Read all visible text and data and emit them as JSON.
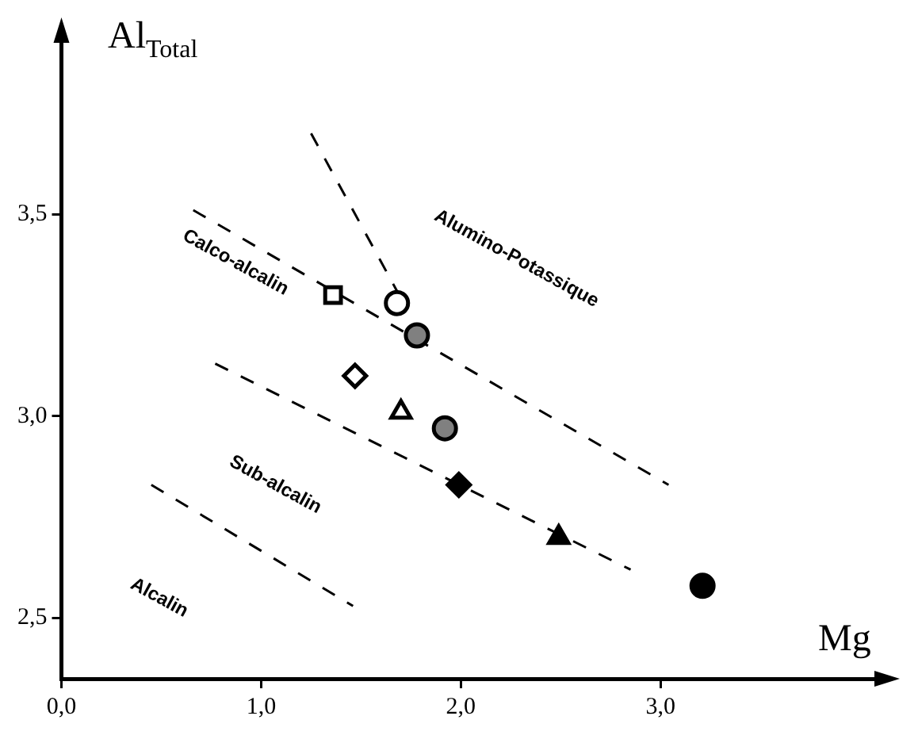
{
  "chart_data": {
    "type": "scatter",
    "xlabel": "Mg",
    "ylabel": "Al$_{Total}$",
    "xlim": [
      0,
      4.15
    ],
    "ylim": [
      2.35,
      3.94
    ],
    "xticks": [
      {
        "value": 0,
        "label": "0,0"
      },
      {
        "value": 1,
        "label": "1,0"
      },
      {
        "value": 2,
        "label": "2,0"
      },
      {
        "value": 3,
        "label": "3,0"
      }
    ],
    "yticks": [
      {
        "value": 2.5,
        "label": "2,5"
      },
      {
        "value": 3,
        "label": "3,0"
      },
      {
        "value": 3.5,
        "label": "3,5"
      }
    ],
    "grid": false,
    "legend": false,
    "series": [
      {
        "type": "scatter",
        "marker": "square",
        "color": "#000000",
        "colors": [
          "#ffffff"
        ],
        "x": [
          1.36
        ],
        "values": [
          3.3
        ]
      },
      {
        "type": "scatter",
        "marker": "circle",
        "color": "#000000",
        "colors": [
          "#ffffff"
        ],
        "x": [
          1.68
        ],
        "values": [
          3.28
        ]
      },
      {
        "type": "scatter",
        "marker": "circle",
        "color": "#000000",
        "colors": [
          "#808080"
        ],
        "x": [
          1.78
        ],
        "values": [
          3.2
        ]
      },
      {
        "type": "scatter",
        "marker": "diamond",
        "color": "#000000",
        "colors": [
          "#ffffff"
        ],
        "x": [
          1.47
        ],
        "values": [
          3.1
        ]
      },
      {
        "type": "scatter",
        "marker": "triangle",
        "color": "#000000",
        "colors": [
          "#ffffff"
        ],
        "x": [
          1.7
        ],
        "values": [
          3.01
        ]
      },
      {
        "type": "scatter",
        "marker": "circle",
        "color": "#000000",
        "colors": [
          "#808080"
        ],
        "x": [
          1.92
        ],
        "values": [
          2.97
        ]
      },
      {
        "type": "scatter",
        "marker": "diamond",
        "color": "#000000",
        "colors": [
          "#000000"
        ],
        "x": [
          1.99
        ],
        "values": [
          2.83
        ]
      },
      {
        "type": "scatter",
        "marker": "triangle",
        "color": "#000000",
        "colors": [
          "#000000"
        ],
        "x": [
          2.49
        ],
        "values": [
          2.7
        ]
      },
      {
        "type": "scatter",
        "marker": "circle",
        "color": "#000000",
        "colors": [
          "#000000"
        ],
        "x": [
          3.21
        ],
        "values": [
          2.58
        ]
      },
      {
        "type": "line",
        "marker": "none",
        "line_style": "dashed",
        "color": "#000000",
        "x": [
          1.25,
          1.68
        ],
        "values": [
          3.7,
          3.31
        ]
      },
      {
        "type": "line",
        "marker": "none",
        "line_style": "dashed",
        "color": "#000000",
        "x": [
          0.66,
          3.04
        ],
        "values": [
          3.51,
          2.83
        ]
      },
      {
        "type": "line",
        "marker": "none",
        "line_style": "dashed",
        "color": "#000000",
        "x": [
          0.77,
          2.85
        ],
        "values": [
          3.13,
          2.62
        ]
      },
      {
        "type": "line",
        "marker": "none",
        "line_style": "dashed",
        "color": "#000000",
        "x": [
          0.45,
          1.46
        ],
        "values": [
          2.83,
          2.53
        ]
      }
    ],
    "annotations": [
      "Alumino-Potassique",
      "Calco-alcalin",
      "Sub-alcalin",
      "Alcalin"
    ]
  }
}
